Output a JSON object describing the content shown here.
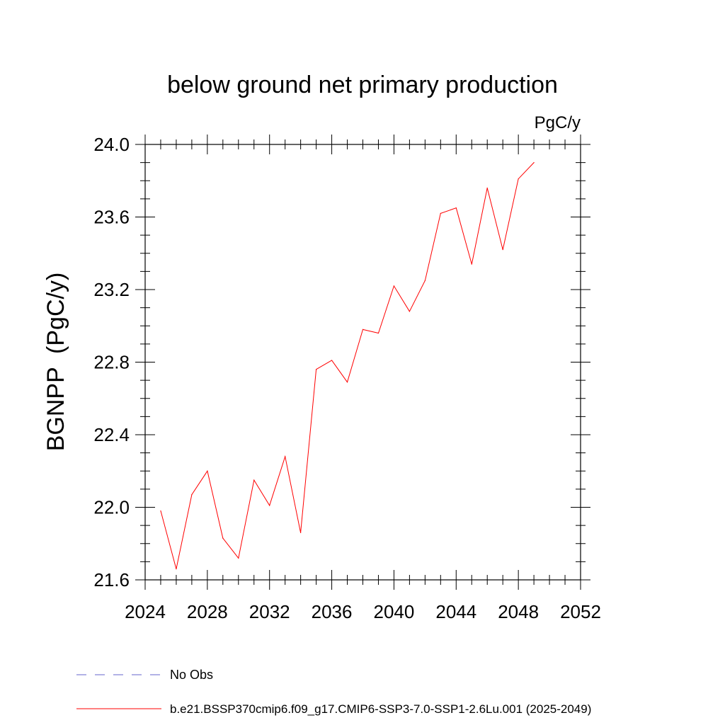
{
  "chart_data": {
    "type": "line",
    "title": "below ground net primary production",
    "units_label": "PgC/y",
    "ylabel": "BGNPP  (PgC/y)",
    "xlabel": "",
    "xlim": [
      2024,
      2052
    ],
    "ylim": [
      21.6,
      24.0
    ],
    "x_ticks": [
      2024,
      2028,
      2032,
      2036,
      2040,
      2044,
      2048,
      2052
    ],
    "x_tick_labels": [
      "2024",
      "2028",
      "2032",
      "2036",
      "2040",
      "2044",
      "2048",
      "2052"
    ],
    "y_ticks": [
      21.6,
      22.0,
      22.4,
      22.8,
      23.2,
      23.6,
      24.0
    ],
    "y_tick_labels": [
      "21.6",
      "22.0",
      "22.4",
      "22.8",
      "23.2",
      "23.6",
      "24.0"
    ],
    "grid": false,
    "legend_position": "bottom",
    "series": [
      {
        "name": "b.e21.BSSP370cmip6.f09_g17.CMIP6-SSP3-7.0-SSP1-2.6Lu.001 (2025-2049)",
        "color": "#ff0000",
        "style": "solid",
        "x": [
          2025,
          2026,
          2027,
          2028,
          2029,
          2030,
          2031,
          2032,
          2033,
          2034,
          2035,
          2036,
          2037,
          2038,
          2039,
          2040,
          2041,
          2042,
          2043,
          2044,
          2045,
          2046,
          2047,
          2048,
          2049
        ],
        "y": [
          21.98,
          21.66,
          22.07,
          22.2,
          21.83,
          21.72,
          22.15,
          22.01,
          22.28,
          21.86,
          22.76,
          22.81,
          22.69,
          22.98,
          22.96,
          23.22,
          23.08,
          23.25,
          23.62,
          23.65,
          23.34,
          23.76,
          23.42,
          23.81,
          23.9
        ]
      }
    ],
    "legend": [
      {
        "label": "No Obs",
        "color": "#6666cc",
        "style": "dashed"
      },
      {
        "label": "b.e21.BSSP370cmip6.f09_g17.CMIP6-SSP3-7.0-SSP1-2.6Lu.001 (2025-2049)",
        "color": "#ff0000",
        "style": "solid"
      }
    ]
  }
}
